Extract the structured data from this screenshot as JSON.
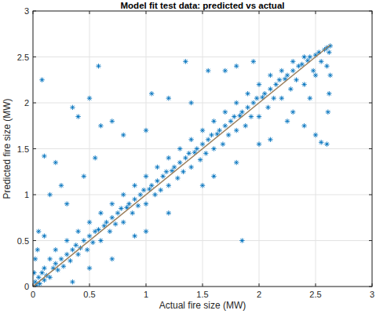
{
  "chart_data": {
    "type": "scatter",
    "title": "Model fit test data: predicted vs actual",
    "x_label": "Actual fire size (MW)",
    "y_label": "Predicted fire size (MW)",
    "xlim": [
      0,
      3
    ],
    "ylim": [
      0,
      3
    ],
    "xticks": [
      0,
      0.5,
      1,
      1.5,
      2,
      2.5,
      3
    ],
    "yticks": [
      0,
      0.5,
      1,
      1.5,
      2,
      2.5,
      3
    ],
    "grid": true,
    "series": [
      {
        "type": "scatter",
        "color": "#0072bd",
        "marker": "asterisk",
        "x": [
          0.02,
          0.03,
          0.05,
          0.06,
          0.08,
          0.1,
          0.1,
          0.12,
          0.15,
          0.15,
          0.18,
          0.2,
          0.2,
          0.22,
          0.25,
          0.27,
          0.3,
          0.3,
          0.33,
          0.35,
          0.38,
          0.4,
          0.4,
          0.42,
          0.45,
          0.48,
          0.5,
          0.5,
          0.53,
          0.55,
          0.58,
          0.6,
          0.6,
          0.63,
          0.65,
          0.68,
          0.7,
          0.7,
          0.73,
          0.75,
          0.78,
          0.8,
          0.8,
          0.83,
          0.85,
          0.88,
          0.9,
          0.9,
          0.93,
          0.95,
          0.98,
          1.0,
          1.0,
          1.03,
          1.05,
          1.08,
          1.1,
          1.1,
          1.13,
          1.15,
          1.18,
          1.2,
          1.2,
          1.23,
          1.25,
          1.28,
          1.3,
          1.3,
          1.33,
          1.35,
          1.38,
          1.4,
          1.4,
          1.43,
          1.45,
          1.48,
          1.5,
          1.5,
          1.53,
          1.55,
          1.58,
          1.6,
          1.6,
          1.63,
          1.65,
          1.68,
          1.7,
          1.7,
          1.73,
          1.75,
          1.78,
          1.8,
          1.8,
          1.83,
          1.85,
          1.88,
          1.9,
          1.9,
          1.93,
          1.95,
          1.98,
          2.0,
          2.0,
          2.03,
          2.05,
          2.08,
          2.1,
          2.1,
          2.13,
          2.15,
          2.18,
          2.2,
          2.2,
          2.23,
          2.25,
          2.28,
          2.3,
          2.3,
          2.33,
          2.35,
          2.38,
          2.4,
          2.4,
          2.43,
          2.45,
          2.48,
          2.5,
          2.5,
          2.53,
          2.55,
          2.58,
          2.6,
          2.6,
          2.62,
          2.63,
          2.62,
          2.63,
          2.61,
          0.08,
          0.1,
          0.2,
          0.35,
          0.4,
          0.5,
          0.58,
          0.6,
          0.55,
          0.3,
          0.15,
          0.05,
          0.1,
          0.25,
          0.45,
          0.7,
          0.8,
          1.0,
          1.05,
          1.2,
          1.35,
          1.4,
          1.55,
          1.7,
          1.8,
          1.95,
          1.85,
          1.8,
          2.0,
          2.1,
          2.25,
          2.4,
          2.5,
          2.6,
          2.55,
          0.9,
          1.2,
          1.5,
          0.7,
          0.35,
          0.5,
          1.0,
          1.6,
          2.3,
          2.45,
          0.02,
          0.01,
          0.04
        ],
        "values": [
          0.05,
          0.01,
          0.1,
          0.03,
          0.15,
          0.07,
          0.2,
          0.12,
          0.3,
          0.1,
          0.2,
          0.25,
          0.4,
          0.18,
          0.3,
          0.22,
          0.35,
          0.5,
          0.28,
          0.4,
          0.45,
          0.35,
          0.6,
          0.42,
          0.5,
          0.4,
          0.55,
          0.7,
          0.48,
          0.6,
          0.62,
          0.5,
          0.8,
          0.66,
          0.7,
          0.6,
          0.75,
          0.9,
          0.68,
          0.8,
          0.85,
          0.7,
          1.0,
          0.86,
          0.9,
          0.8,
          0.95,
          1.1,
          0.88,
          1.0,
          1.05,
          0.9,
          1.2,
          1.06,
          1.1,
          1.0,
          1.15,
          1.3,
          1.05,
          1.2,
          1.25,
          1.1,
          1.4,
          1.26,
          1.3,
          1.18,
          1.35,
          1.5,
          1.25,
          1.4,
          1.45,
          1.3,
          1.6,
          1.46,
          1.5,
          1.38,
          1.55,
          1.7,
          1.45,
          1.6,
          1.65,
          1.5,
          1.8,
          1.66,
          1.7,
          1.55,
          1.75,
          1.9,
          1.65,
          1.8,
          1.85,
          1.7,
          2.0,
          1.86,
          1.9,
          1.75,
          1.95,
          2.1,
          1.85,
          2.0,
          2.05,
          1.85,
          2.2,
          2.06,
          2.1,
          1.95,
          2.15,
          2.3,
          2.05,
          2.2,
          2.25,
          2.05,
          2.35,
          2.26,
          2.3,
          2.15,
          2.35,
          2.45,
          2.25,
          2.4,
          2.42,
          2.2,
          2.5,
          2.46,
          2.5,
          2.35,
          2.52,
          2.3,
          2.55,
          2.45,
          2.58,
          2.4,
          2.6,
          2.55,
          2.3,
          2.1,
          2.62,
          1.9,
          2.25,
          1.42,
          1.35,
          1.95,
          1.85,
          2.05,
          2.4,
          1.75,
          1.4,
          0.9,
          1.0,
          0.6,
          0.55,
          1.1,
          1.2,
          1.8,
          1.65,
          1.7,
          2.1,
          2.05,
          2.45,
          2.0,
          2.35,
          2.35,
          2.4,
          2.45,
          0.5,
          1.35,
          1.55,
          1.6,
          1.8,
          1.75,
          1.65,
          1.55,
          1.57,
          0.55,
          0.8,
          1.1,
          0.3,
          0.05,
          0.2,
          0.6,
          1.2,
          1.9,
          2.05,
          0.3,
          0.15,
          0.4
        ]
      },
      {
        "type": "line",
        "color": "#9a7d5a",
        "line_style": "solid",
        "x": [
          0,
          2.63
        ],
        "values": [
          0,
          2.63
        ]
      }
    ]
  }
}
